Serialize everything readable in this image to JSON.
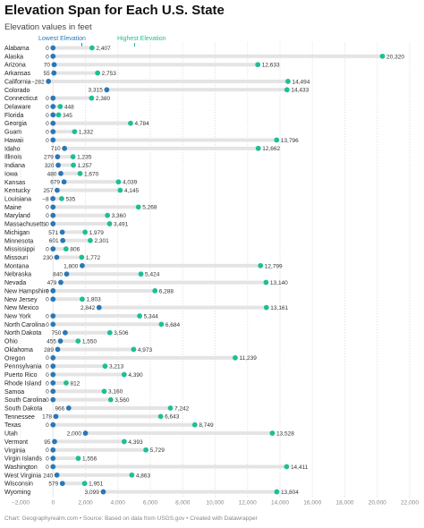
{
  "chart_data": {
    "type": "dot-range",
    "title": "Elevation Span for Each U.S. State",
    "subtitle": "Elevation values in feet",
    "legend": {
      "low_label": "Lowest Elevation",
      "high_label": "Highest Elevation",
      "placement": "top"
    },
    "footer": "Chart: Geographyrealm.com • Source: Based on data from USGS.gov • Created with Datawrapper",
    "xlim": [
      -2000,
      22000
    ],
    "xticks": [
      -2000,
      0,
      2000,
      4000,
      6000,
      8000,
      10000,
      12000,
      14000,
      16000,
      18000,
      20000,
      22000
    ],
    "xtick_labels": [
      "−2,000",
      "0",
      "2,000",
      "4,000",
      "6,000",
      "8,000",
      "10,000",
      "12,000",
      "14,000",
      "16,000",
      "18,000",
      "20,000",
      "22,000"
    ],
    "grid": true,
    "colors": {
      "low": "#2a78b8",
      "high": "#1dbf95",
      "range": "#e4e4e4",
      "grid": "#e6e6e6"
    },
    "states": [
      {
        "name": "Alabama",
        "low": 0,
        "high": 2407,
        "low_label": "0",
        "high_label": "2,407"
      },
      {
        "name": "Alaska",
        "low": 0,
        "high": 20320,
        "low_label": "0",
        "high_label": "20,320"
      },
      {
        "name": "Arizona",
        "low": 70,
        "high": 12633,
        "low_label": "70",
        "high_label": "12,633"
      },
      {
        "name": "Arkansas",
        "low": 55,
        "high": 2753,
        "low_label": "55",
        "high_label": "2,753"
      },
      {
        "name": "California",
        "low": -282,
        "high": 14494,
        "low_label": "−282",
        "high_label": "14,494"
      },
      {
        "name": "Colorado",
        "low": 3315,
        "high": 14433,
        "low_label": "3,315",
        "high_label": "14,433"
      },
      {
        "name": "Connecticut",
        "low": 0,
        "high": 2380,
        "low_label": "0",
        "high_label": "2,380"
      },
      {
        "name": "Delaware",
        "low": 0,
        "high": 448,
        "low_label": "0",
        "high_label": "448"
      },
      {
        "name": "Florida",
        "low": 0,
        "high": 345,
        "low_label": "0",
        "high_label": "345"
      },
      {
        "name": "Georgia",
        "low": 0,
        "high": 4784,
        "low_label": "0",
        "high_label": "4,784"
      },
      {
        "name": "Guam",
        "low": 0,
        "high": 1332,
        "low_label": "0",
        "high_label": "1,332"
      },
      {
        "name": "Hawaii",
        "low": 0,
        "high": 13796,
        "low_label": "0",
        "high_label": "13,796"
      },
      {
        "name": "Idaho",
        "low": 710,
        "high": 12662,
        "low_label": "710",
        "high_label": "12,662"
      },
      {
        "name": "Illinois",
        "low": 279,
        "high": 1235,
        "low_label": "279",
        "high_label": "1,235"
      },
      {
        "name": "Indiana",
        "low": 320,
        "high": 1257,
        "low_label": "320",
        "high_label": "1,257"
      },
      {
        "name": "Iowa",
        "low": 480,
        "high": 1670,
        "low_label": "480",
        "high_label": "1,670"
      },
      {
        "name": "Kansas",
        "low": 679,
        "high": 4039,
        "low_label": "679",
        "high_label": "4,039"
      },
      {
        "name": "Kentucky",
        "low": 257,
        "high": 4145,
        "low_label": "257",
        "high_label": "4,145"
      },
      {
        "name": "Louisiana",
        "low": -8,
        "high": 535,
        "low_label": "−8",
        "high_label": "535"
      },
      {
        "name": "Maine",
        "low": 0,
        "high": 5268,
        "low_label": "0",
        "high_label": "5,268"
      },
      {
        "name": "Maryland",
        "low": 0,
        "high": 3360,
        "low_label": "0",
        "high_label": "3,360"
      },
      {
        "name": "Massachusetts",
        "low": 0,
        "high": 3491,
        "low_label": "0",
        "high_label": "3,491"
      },
      {
        "name": "Michigan",
        "low": 571,
        "high": 1979,
        "low_label": "571",
        "high_label": "1,979"
      },
      {
        "name": "Minnesota",
        "low": 601,
        "high": 2301,
        "low_label": "601",
        "high_label": "2,301"
      },
      {
        "name": "Mississippi",
        "low": 0,
        "high": 806,
        "low_label": "0",
        "high_label": "806"
      },
      {
        "name": "Missouri",
        "low": 230,
        "high": 1772,
        "low_label": "230",
        "high_label": "1,772"
      },
      {
        "name": "Montana",
        "low": 1800,
        "high": 12799,
        "low_label": "1,800",
        "high_label": "12,799"
      },
      {
        "name": "Nebraska",
        "low": 840,
        "high": 5424,
        "low_label": "840",
        "high_label": "5,424"
      },
      {
        "name": "Nevada",
        "low": 479,
        "high": 13140,
        "low_label": "479",
        "high_label": "13,140"
      },
      {
        "name": "New Hampshire",
        "low": 0,
        "high": 6288,
        "low_label": "0",
        "high_label": "6,288"
      },
      {
        "name": "New Jersey",
        "low": 0,
        "high": 1803,
        "low_label": "0",
        "high_label": "1,803"
      },
      {
        "name": "New Mexico",
        "low": 2842,
        "high": 13161,
        "low_label": "2,842",
        "high_label": "13,161"
      },
      {
        "name": "New York",
        "low": 0,
        "high": 5344,
        "low_label": "0",
        "high_label": "5,344"
      },
      {
        "name": "North Carolina",
        "low": 0,
        "high": 6684,
        "low_label": "0",
        "high_label": "6,684"
      },
      {
        "name": "North Dakota",
        "low": 750,
        "high": 3506,
        "low_label": "750",
        "high_label": "3,506"
      },
      {
        "name": "Ohio",
        "low": 455,
        "high": 1550,
        "low_label": "455",
        "high_label": "1,550"
      },
      {
        "name": "Oklahoma",
        "low": 289,
        "high": 4973,
        "low_label": "289",
        "high_label": "4,973"
      },
      {
        "name": "Oregon",
        "low": 0,
        "high": 11239,
        "low_label": "0",
        "high_label": "11,239"
      },
      {
        "name": "Pennsylvania",
        "low": 0,
        "high": 3213,
        "low_label": "0",
        "high_label": "3,213"
      },
      {
        "name": "Puerto Rico",
        "low": 0,
        "high": 4390,
        "low_label": "0",
        "high_label": "4,390"
      },
      {
        "name": "Rhode Island",
        "low": 0,
        "high": 812,
        "low_label": "0",
        "high_label": "812"
      },
      {
        "name": "Samoa",
        "low": 0,
        "high": 3160,
        "low_label": "0",
        "high_label": "3,160"
      },
      {
        "name": "South Carolina",
        "low": 0,
        "high": 3560,
        "low_label": "0",
        "high_label": "3,560"
      },
      {
        "name": "South Dakota",
        "low": 966,
        "high": 7242,
        "low_label": "966",
        "high_label": "7,242"
      },
      {
        "name": "Tennessee",
        "low": 178,
        "high": 6643,
        "low_label": "178",
        "high_label": "6,643"
      },
      {
        "name": "Texas",
        "low": 0,
        "high": 8749,
        "low_label": "0",
        "high_label": "8,749"
      },
      {
        "name": "Utah",
        "low": 2000,
        "high": 13528,
        "low_label": "2,000",
        "high_label": "13,528"
      },
      {
        "name": "Vermont",
        "low": 95,
        "high": 4393,
        "low_label": "95",
        "high_label": "4,393"
      },
      {
        "name": "Virginia",
        "low": 0,
        "high": 5729,
        "low_label": "0",
        "high_label": "5,729"
      },
      {
        "name": "Virgin Islands",
        "low": 0,
        "high": 1556,
        "low_label": "0",
        "high_label": "1,556"
      },
      {
        "name": "Washington",
        "low": 0,
        "high": 14411,
        "low_label": "0",
        "high_label": "14,411"
      },
      {
        "name": "West Virginia",
        "low": 240,
        "high": 4863,
        "low_label": "240",
        "high_label": "4,863"
      },
      {
        "name": "Wisconsin",
        "low": 579,
        "high": 1951,
        "low_label": "579",
        "high_label": "1,951"
      },
      {
        "name": "Wyoming",
        "low": 3099,
        "high": 13804,
        "low_label": "3,099",
        "high_label": "13,804"
      }
    ]
  }
}
